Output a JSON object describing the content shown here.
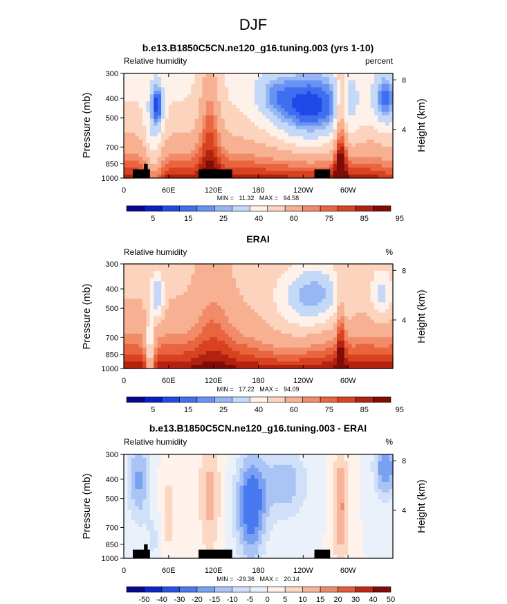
{
  "figure": {
    "suptitle": "DJF",
    "colors": {
      "abs_palette": [
        "#08088f",
        "#0c1fc7",
        "#1f49e8",
        "#3f6ef0",
        "#6993f2",
        "#96b6f4",
        "#c4d8f7",
        "#fdf1ea",
        "#fcd3bd",
        "#f8b092",
        "#f18b68",
        "#e9653f",
        "#d84220",
        "#b2220e",
        "#7e0c08"
      ],
      "diff_palette": [
        "#08088f",
        "#0d24c9",
        "#2452e6",
        "#4879ee",
        "#7aa0f2",
        "#a9c4f5",
        "#d0e0f8",
        "#eaf1fb",
        "#fff2ea",
        "#fcd7c4",
        "#f7b49b",
        "#ef8b6d",
        "#e05b3c",
        "#bd2916",
        "#7e0c08"
      ],
      "terrain": "#000000"
    }
  },
  "chart_data": [
    {
      "type": "heatmap",
      "title": "b.e13.B1850C5CN.ne120_g16.tuning.003 (yrs 1-10)",
      "left_label": "Relative humidity",
      "right_label": "percent",
      "ylabel": "Pressure (mb)",
      "y2label": "Height (km)",
      "x_ticks": [
        "0",
        "60E",
        "120E",
        "180",
        "120W",
        "60W"
      ],
      "x_tick_values": [
        0,
        60,
        120,
        180,
        240,
        300
      ],
      "xlim": [
        0,
        360
      ],
      "y_ticks": [
        300,
        400,
        500,
        700,
        850,
        1000
      ],
      "ylim": [
        1000,
        300
      ],
      "y_scale": "log",
      "y2_ticks": [
        4,
        8
      ],
      "min_max_text": "MIN =   11.32   MAX =   94.58",
      "colorbar_labels": [
        "5",
        "15",
        "25",
        "40",
        "60",
        "75",
        "85",
        "95"
      ],
      "colorbar_bins": 15,
      "palette": "abs",
      "terrain": true
    },
    {
      "type": "heatmap",
      "title": "ERAI",
      "left_label": "Relative humidity",
      "right_label": "%",
      "ylabel": "Pressure (mb)",
      "y2label": "Height (km)",
      "x_ticks": [
        "0",
        "60E",
        "120E",
        "180",
        "120W",
        "60W"
      ],
      "x_tick_values": [
        0,
        60,
        120,
        180,
        240,
        300
      ],
      "xlim": [
        0,
        360
      ],
      "y_ticks": [
        300,
        400,
        500,
        700,
        850,
        1000
      ],
      "ylim": [
        1000,
        300
      ],
      "y_scale": "log",
      "y2_ticks": [
        4,
        8
      ],
      "min_max_text": "MIN =   17.22   MAX =   94.09",
      "colorbar_labels": [
        "5",
        "15",
        "25",
        "40",
        "60",
        "75",
        "85",
        "95"
      ],
      "colorbar_bins": 15,
      "palette": "abs",
      "terrain": false
    },
    {
      "type": "heatmap",
      "title": "b.e13.B1850C5CN.ne120_g16.tuning.003 - ERAI",
      "left_label": "Relative humidity",
      "right_label": "%",
      "ylabel": "Pressure (mb)",
      "y2label": "Height (km)",
      "x_ticks": [
        "0",
        "60E",
        "120E",
        "180",
        "120W",
        "60W"
      ],
      "x_tick_values": [
        0,
        60,
        120,
        180,
        240,
        300
      ],
      "xlim": [
        0,
        360
      ],
      "y_ticks": [
        300,
        400,
        500,
        700,
        850,
        1000
      ],
      "ylim": [
        1000,
        300
      ],
      "y_scale": "log",
      "y2_ticks": [
        4,
        8
      ],
      "min_max_text": "MIN =  -29.36   MAX =   20.14",
      "colorbar_labels": [
        "-50",
        "-40",
        "-30",
        "-20",
        "-15",
        "-10",
        "-5",
        "0",
        "5",
        "10",
        "15",
        "20",
        "30",
        "40",
        "50"
      ],
      "colorbar_bins": 15,
      "palette": "diff",
      "terrain": true
    }
  ]
}
